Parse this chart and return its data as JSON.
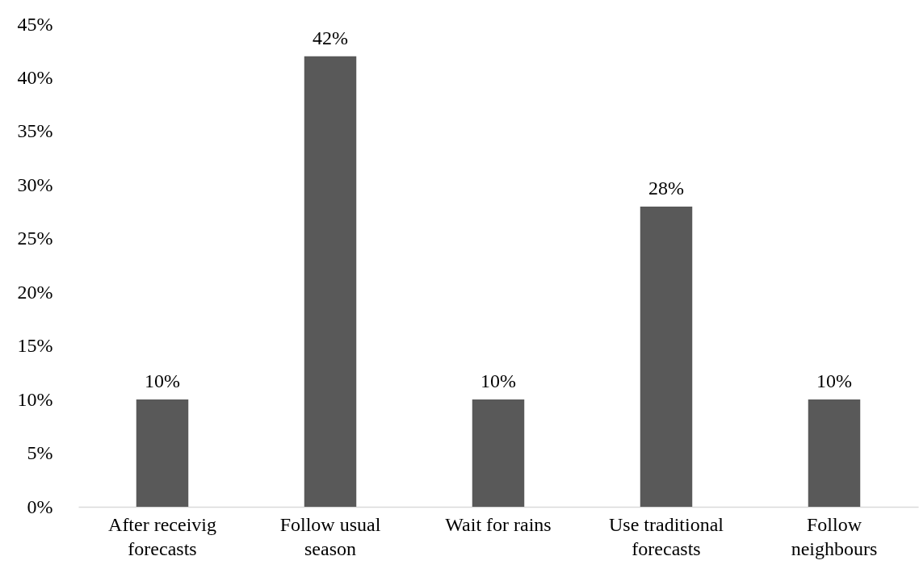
{
  "chart_data": {
    "type": "bar",
    "categories": [
      "After receivig forecasts",
      "Follow usual season",
      "Wait for rains",
      "Use traditional forecasts",
      "Follow neighbours"
    ],
    "values": [
      10,
      42,
      10,
      28,
      10
    ],
    "value_labels": [
      "10%",
      "42%",
      "10%",
      "28%",
      "10%"
    ],
    "color": "#595959",
    "ylim": [
      0,
      45
    ],
    "yticks": [
      {
        "value": 0,
        "label": "0%"
      },
      {
        "value": 5,
        "label": "5%"
      },
      {
        "value": 10,
        "label": "10%"
      },
      {
        "value": 15,
        "label": "15%"
      },
      {
        "value": 20,
        "label": "20%"
      },
      {
        "value": 25,
        "label": "25%"
      },
      {
        "value": 30,
        "label": "30%"
      },
      {
        "value": 35,
        "label": "35%"
      },
      {
        "value": 40,
        "label": "40%"
      },
      {
        "value": 45,
        "label": "45%"
      }
    ]
  }
}
